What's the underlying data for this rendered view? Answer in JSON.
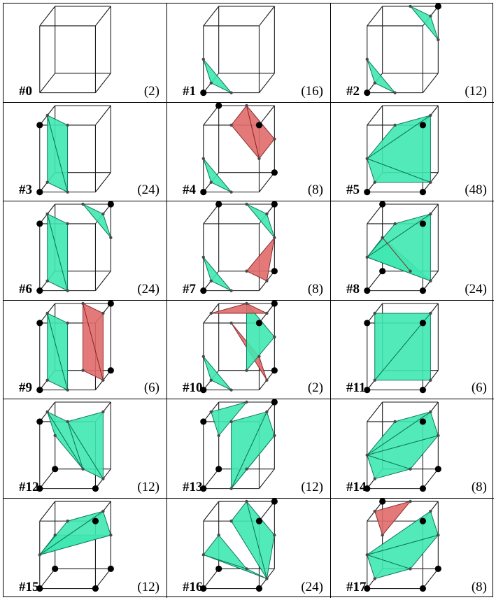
{
  "title": "",
  "colors": {
    "cube_edge": "#1a1a1a",
    "green_fill": "#3fe8b0",
    "green_stroke": "#0d7a5a",
    "red_fill": "#e06a6a",
    "red_stroke": "#8a2a2a",
    "vertex_dot": "#000000",
    "edge_point": "#4a4a4a"
  },
  "cases": [
    {
      "label": "#0",
      "count": "(2)",
      "vertices": [],
      "triangles": []
    },
    {
      "label": "#1",
      "count": "(16)",
      "vertices": [
        0
      ],
      "triangles": [
        [
          "g",
          "e03",
          "e01",
          "e04"
        ]
      ]
    },
    {
      "label": "#2",
      "count": "(12)",
      "vertices": [
        0,
        6
      ],
      "triangles": [
        [
          "g",
          "e03",
          "e01",
          "e04"
        ],
        [
          "g",
          "e26",
          "e56",
          "e67"
        ]
      ]
    },
    {
      "label": "#3",
      "count": "(24)",
      "vertices": [
        0,
        3
      ],
      "triangles": [
        [
          "g",
          "e01",
          "e04",
          "e37"
        ],
        [
          "g",
          "e01",
          "e37",
          "e23"
        ]
      ]
    },
    {
      "label": "#4",
      "count": "(8)",
      "vertices": [
        0,
        2,
        5,
        7
      ],
      "triangles": [
        [
          "g",
          "e03",
          "e01",
          "e04"
        ],
        [
          "r",
          "e12",
          "e56",
          "e67"
        ],
        [
          "r",
          "e12",
          "e67",
          "e23"
        ]
      ]
    },
    {
      "label": "#5",
      "count": "(48)",
      "vertices": [
        0,
        1,
        2
      ],
      "triangles": [
        [
          "g",
          "e03",
          "e04",
          "e15"
        ],
        [
          "g",
          "e03",
          "e15",
          "e26"
        ],
        [
          "g",
          "e03",
          "e26",
          "e23"
        ]
      ]
    },
    {
      "label": "#6",
      "count": "(24)",
      "vertices": [
        0,
        3,
        6
      ],
      "triangles": [
        [
          "g",
          "e01",
          "e04",
          "e37"
        ],
        [
          "g",
          "e01",
          "e37",
          "e23"
        ],
        [
          "g",
          "e26",
          "e56",
          "e67"
        ]
      ]
    },
    {
      "label": "#7",
      "count": "(8)",
      "vertices": [
        0,
        5,
        6,
        7
      ],
      "triangles": [
        [
          "g",
          "e03",
          "e01",
          "e04"
        ],
        [
          "r",
          "e15",
          "e45",
          "e56"
        ],
        [
          "g",
          "e26",
          "e56",
          "e67"
        ]
      ]
    },
    {
      "label": "#8",
      "count": "(24)",
      "vertices": [
        0,
        1,
        2,
        4,
        7
      ],
      "triangles": [
        [
          "g",
          "e03",
          "e48",
          "e15"
        ],
        [
          "g",
          "e03",
          "e15",
          "e26"
        ],
        [
          "g",
          "e03",
          "e26",
          "e23"
        ],
        [
          "r",
          "e45",
          "e47",
          "e48"
        ]
      ]
    },
    {
      "label": "#9",
      "count": "(6)",
      "vertices": [
        0,
        3,
        5,
        6
      ],
      "triangles": [
        [
          "g",
          "e01",
          "e04",
          "e37"
        ],
        [
          "g",
          "e01",
          "e37",
          "e23"
        ],
        [
          "r",
          "e15",
          "e45",
          "e67"
        ],
        [
          "r",
          "e15",
          "e67",
          "e26"
        ]
      ]
    },
    {
      "label": "#10",
      "count": "(2)",
      "vertices": [
        0,
        2,
        5,
        6
      ],
      "triangles": [
        [
          "g",
          "e03",
          "e01",
          "e04"
        ],
        [
          "r",
          "e12",
          "e15",
          "e23"
        ],
        [
          "g",
          "e45",
          "e56",
          "e67"
        ],
        [
          "r",
          "e26",
          "e67",
          "e37"
        ]
      ]
    },
    {
      "label": "#11",
      "count": "(6)",
      "vertices": [
        0,
        1,
        2,
        3
      ],
      "triangles": [
        [
          "g",
          "e04",
          "e15",
          "e26"
        ],
        [
          "g",
          "e04",
          "e26",
          "e37"
        ]
      ]
    },
    {
      "label": "#12",
      "count": "(12)",
      "vertices": [
        0,
        1,
        3,
        4
      ],
      "triangles": [
        [
          "g",
          "e15",
          "e26",
          "e23"
        ],
        [
          "g",
          "e15",
          "e23",
          "e45"
        ],
        [
          "g",
          "e45",
          "e23",
          "e37"
        ],
        [
          "g",
          "e45",
          "e37",
          "e47"
        ]
      ]
    },
    {
      "label": "#13",
      "count": "(12)",
      "vertices": [
        0,
        3,
        4,
        6
      ],
      "triangles": [
        [
          "g",
          "e01",
          "e45",
          "e56"
        ],
        [
          "g",
          "e01",
          "e56",
          "e26"
        ],
        [
          "g",
          "e01",
          "e26",
          "e23"
        ],
        [
          "g",
          "e47",
          "e37",
          "e67"
        ]
      ]
    },
    {
      "label": "#14",
      "count": "(8)",
      "vertices": [
        0,
        1,
        2,
        5
      ],
      "triangles": [
        [
          "g",
          "e03",
          "e04",
          "e45"
        ],
        [
          "g",
          "e03",
          "e45",
          "e56"
        ],
        [
          "g",
          "e03",
          "e56",
          "e26"
        ],
        [
          "g",
          "e03",
          "e26",
          "e23"
        ]
      ]
    },
    {
      "label": "#15",
      "count": "(12)",
      "vertices": [
        0,
        1,
        2,
        4,
        5
      ],
      "triangles": [
        [
          "g",
          "e03",
          "e47",
          "e56"
        ],
        [
          "g",
          "e03",
          "e56",
          "e26"
        ],
        [
          "g",
          "e03",
          "e26",
          "e23"
        ]
      ]
    },
    {
      "label": "#16",
      "count": "(24)",
      "vertices": [
        0,
        1,
        2,
        4,
        6
      ],
      "triangles": [
        [
          "g",
          "e03",
          "e47",
          "e45"
        ],
        [
          "g",
          "e03",
          "e45",
          "e15"
        ],
        [
          "g",
          "e15",
          "e56",
          "e67"
        ],
        [
          "g",
          "e15",
          "e67",
          "e23"
        ]
      ]
    },
    {
      "label": "#17",
      "count": "(8)",
      "vertices": [
        0,
        1,
        2,
        5,
        7
      ],
      "triangles": [
        [
          "g",
          "e03",
          "e04",
          "e45"
        ],
        [
          "g",
          "e03",
          "e45",
          "e56"
        ],
        [
          "g",
          "e03",
          "e56",
          "e26"
        ],
        [
          "r",
          "e47",
          "e37",
          "e67"
        ]
      ]
    }
  ]
}
